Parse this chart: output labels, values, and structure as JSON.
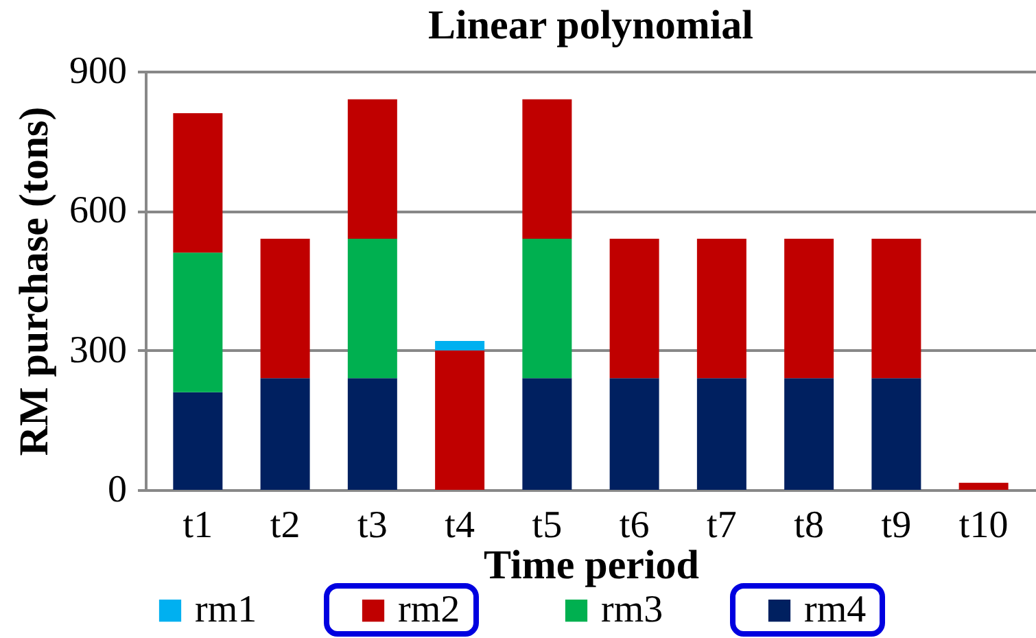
{
  "chart_data": {
    "type": "bar",
    "title": "Linear polynomial",
    "xlabel": "Time period",
    "ylabel": "RM purchase (tons)",
    "categories": [
      "t1",
      "t2",
      "t3",
      "t4",
      "t5",
      "t6",
      "t7",
      "t8",
      "t9",
      "t10"
    ],
    "stacked": true,
    "series": [
      {
        "name": "rm4",
        "color": "#002060",
        "values": [
          210,
          240,
          240,
          null,
          240,
          240,
          240,
          240,
          240,
          null
        ]
      },
      {
        "name": "rm3",
        "color": "#00b050",
        "values": [
          300,
          null,
          300,
          null,
          300,
          null,
          null,
          null,
          null,
          null
        ]
      },
      {
        "name": "rm2",
        "color": "#c00000",
        "values": [
          300,
          300,
          300,
          300,
          300,
          300,
          300,
          300,
          300,
          15
        ]
      },
      {
        "name": "rm1",
        "color": "#00b0f0",
        "values": [
          null,
          null,
          null,
          20,
          null,
          null,
          null,
          null,
          null,
          null
        ]
      }
    ],
    "ylim": [
      0,
      900
    ],
    "yticks": [
      0,
      300,
      600,
      900
    ],
    "grid": "y",
    "legend": "bottom"
  }
}
